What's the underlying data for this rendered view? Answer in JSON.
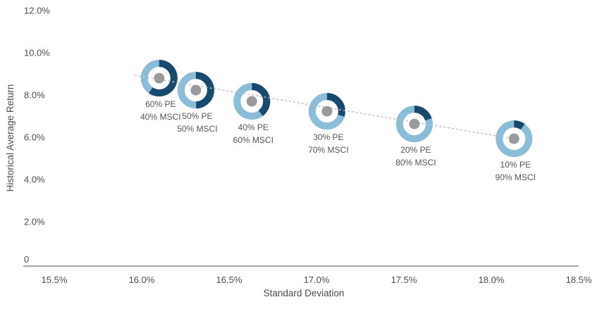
{
  "chart_data": {
    "type": "scatter",
    "title": "",
    "xlabel": "Standard Deviation",
    "ylabel": "Historical Average Return",
    "xlim": [
      15.5,
      18.5
    ],
    "ylim": [
      0,
      12
    ],
    "grid": false,
    "legend": "none",
    "y_zero_label": "0",
    "x_ticks": [
      {
        "value": 15.5,
        "label": "15.5%"
      },
      {
        "value": 16.0,
        "label": "16.0%"
      },
      {
        "value": 16.5,
        "label": "16.5%"
      },
      {
        "value": 17.0,
        "label": "17.0%"
      },
      {
        "value": 17.5,
        "label": "17.5%"
      },
      {
        "value": 18.0,
        "label": "18.0%"
      },
      {
        "value": 18.5,
        "label": "18.5%"
      }
    ],
    "y_ticks": [
      {
        "value": 12,
        "label": "12.0%"
      },
      {
        "value": 10,
        "label": "10.0%"
      },
      {
        "value": 8,
        "label": "8.0%"
      },
      {
        "value": 6,
        "label": "6.0%"
      },
      {
        "value": 4,
        "label": "4.0%"
      },
      {
        "value": 2,
        "label": "2.0%"
      }
    ],
    "points": [
      {
        "pe": 60,
        "msci": 40,
        "std_dev": 16.1,
        "return": 8.8,
        "label_line1": "60% PE",
        "label_line2": "40% MSCI"
      },
      {
        "pe": 50,
        "msci": 50,
        "std_dev": 16.31,
        "return": 8.23,
        "label_line1": "50% PE",
        "label_line2": "50% MSCI"
      },
      {
        "pe": 40,
        "msci": 60,
        "std_dev": 16.63,
        "return": 7.7,
        "label_line1": "40% PE",
        "label_line2": "60% MSCI"
      },
      {
        "pe": 30,
        "msci": 70,
        "std_dev": 17.06,
        "return": 7.23,
        "label_line1": "30% PE",
        "label_line2": "70% MSCI"
      },
      {
        "pe": 20,
        "msci": 80,
        "std_dev": 17.56,
        "return": 6.63,
        "label_line1": "20% PE",
        "label_line2": "80% MSCI"
      },
      {
        "pe": 10,
        "msci": 90,
        "std_dev": 18.13,
        "return": 5.93,
        "label_line1": "10% PE",
        "label_line2": "90% MSCI"
      }
    ],
    "trendline": {
      "style": "dashed",
      "from": {
        "std_dev": 15.96,
        "return": 8.93
      },
      "to": {
        "std_dev": 18.13,
        "return": 5.93
      }
    },
    "colors": {
      "pe_dark_blue": "#174A6C",
      "msci_light_blue": "#8BBDD9",
      "marker_dot_gray": "#9B9B9B",
      "trendline_gray": "#BDBDBD",
      "axis_line_gray": "#8C8C8C",
      "label_text_gray": "#555555",
      "tick_text_gray": "#4D4D4D"
    }
  }
}
